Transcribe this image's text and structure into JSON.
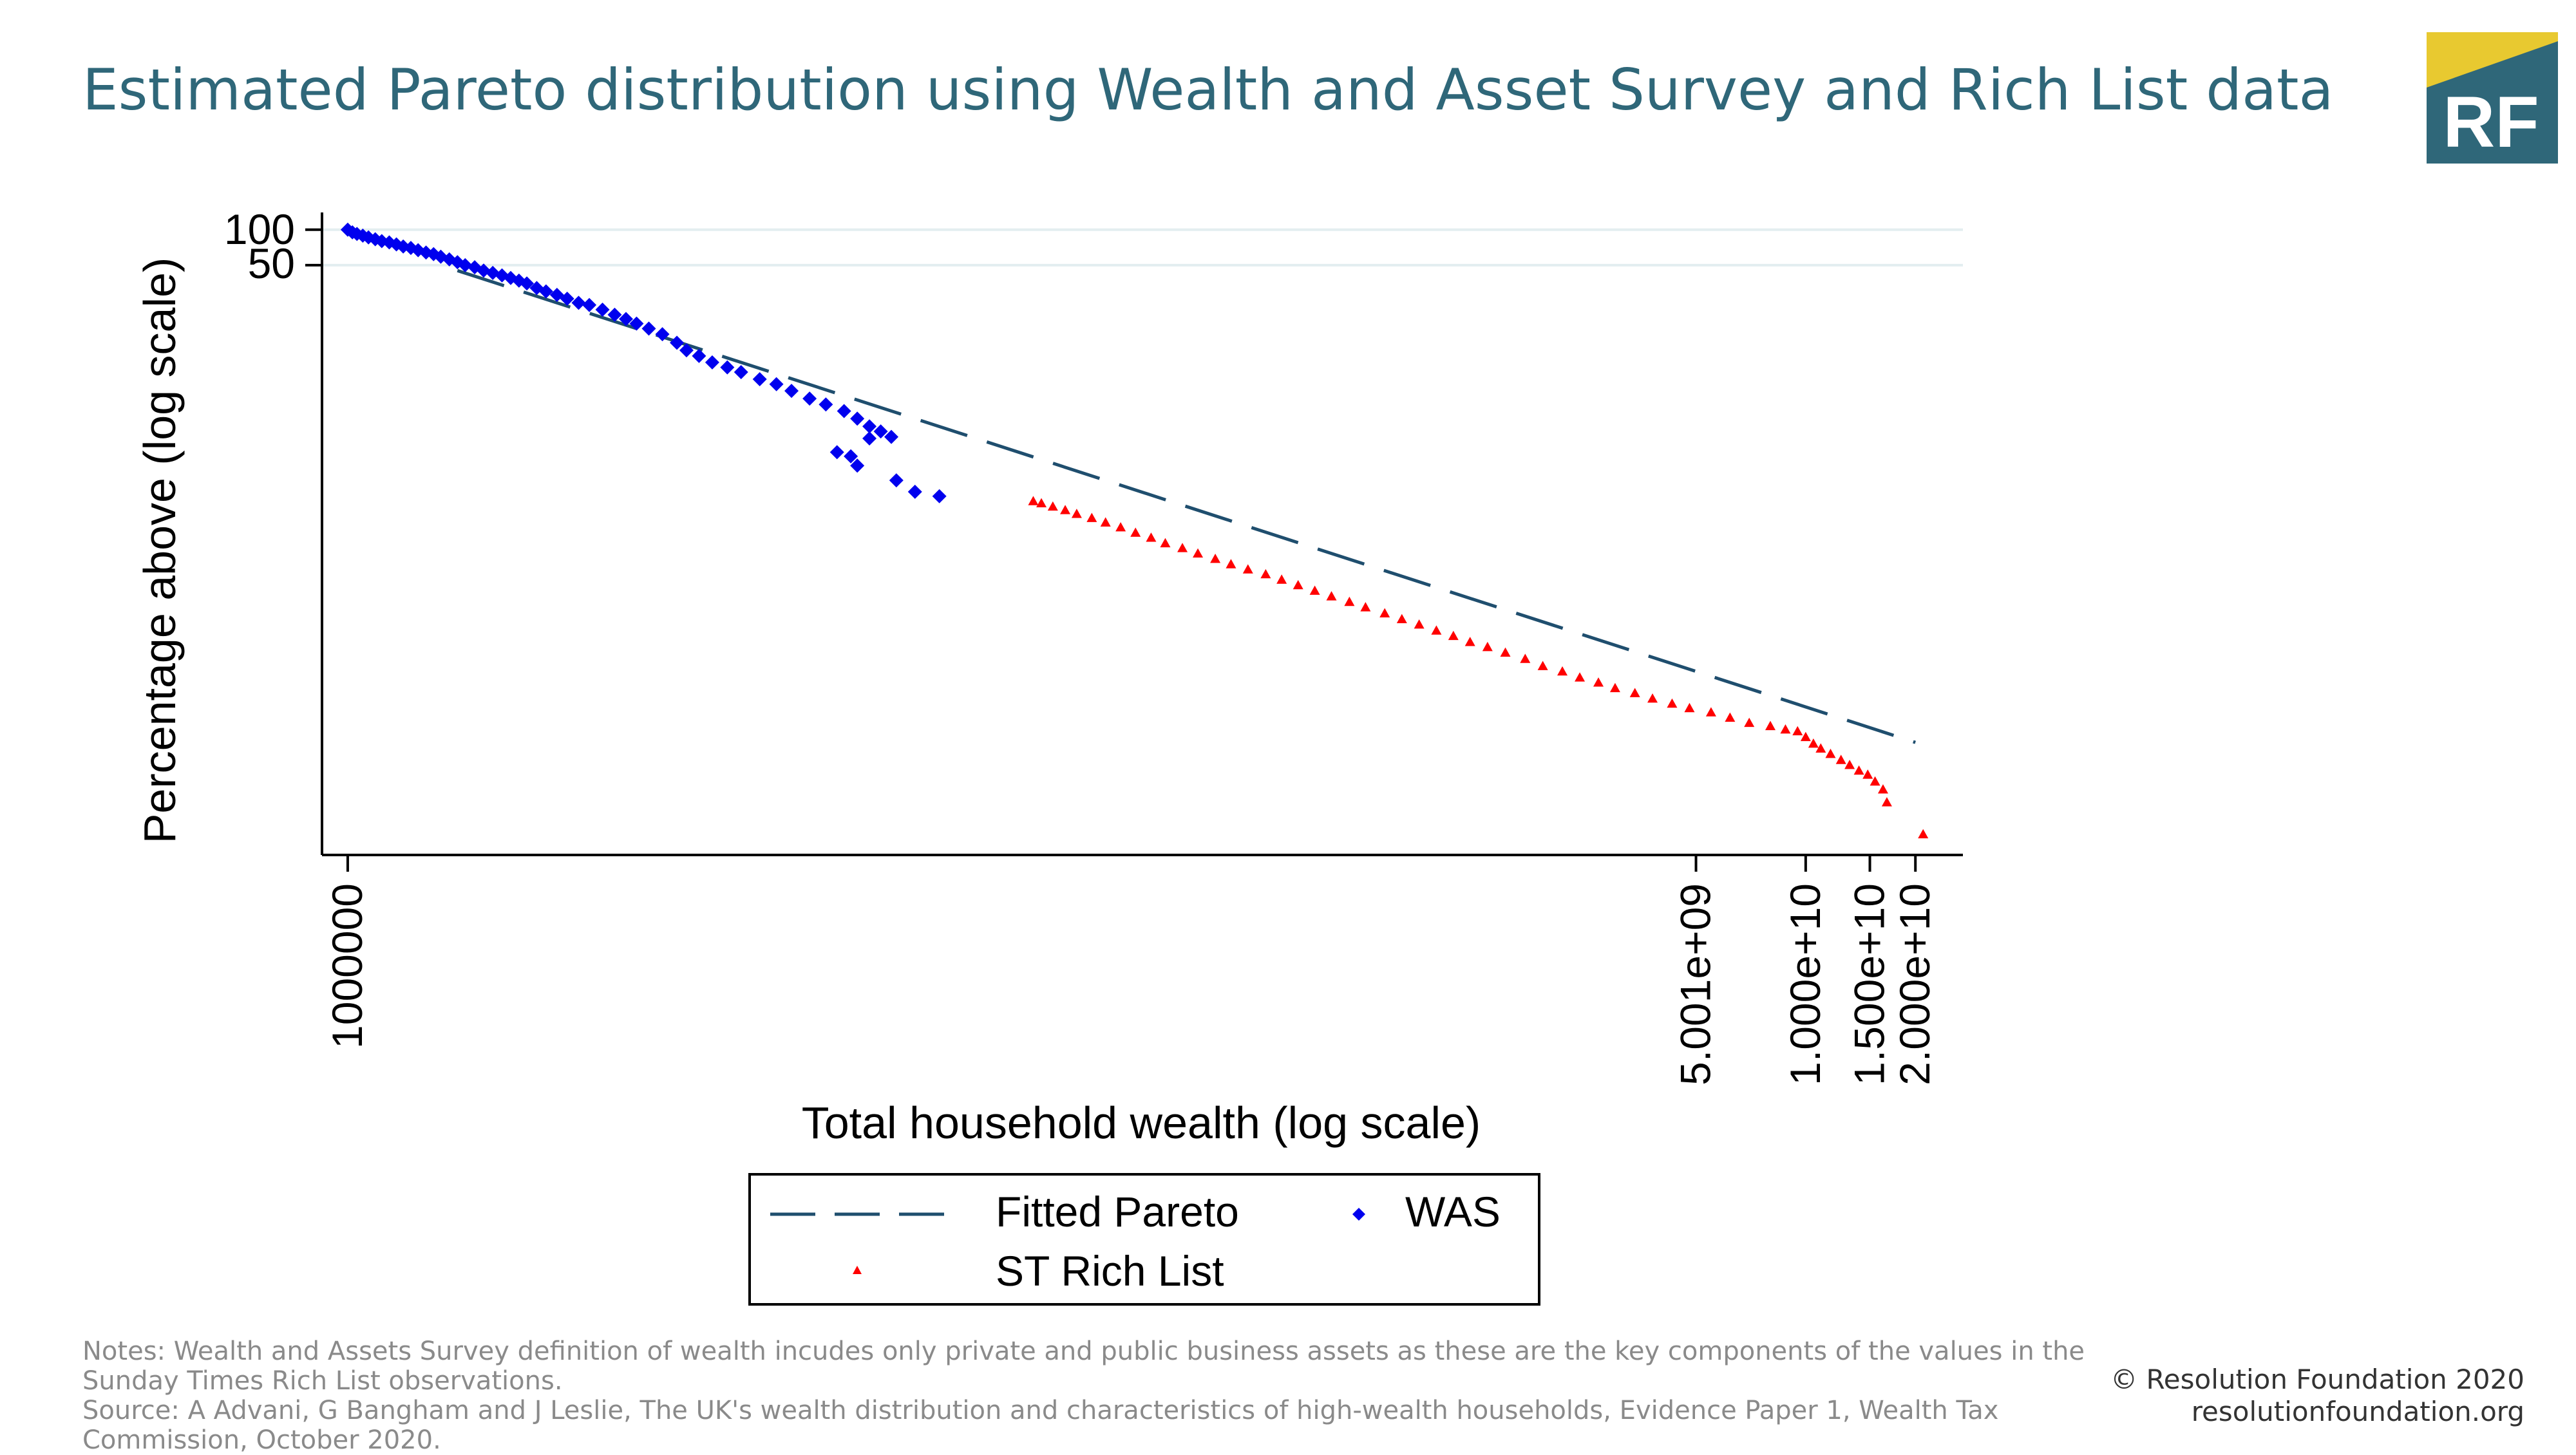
{
  "title": "Estimated Pareto distribution using Wealth and Asset Survey and Rich List data",
  "logo": {
    "text": "RF",
    "bg_color": "#2f6779",
    "accent_color": "#e8c930"
  },
  "notes": [
    "Notes: Wealth and Assets Survey definition of wealth incudes only private and public business assets as these are the key components of the values in the Sunday Times Rich List observations.",
    "Source: A Advani, G Bangham and J Leslie, The UK's wealth distribution and characteristics of high-wealth households, Evidence Paper 1, Wealth Tax Commission, October 2020."
  ],
  "footer": {
    "copyright": "© Resolution Foundation 2020",
    "website": "resolutionfoundation.org"
  },
  "legend": [
    {
      "label": "Fitted Pareto",
      "symbol": "dashed-line"
    },
    {
      "label": "WAS",
      "symbol": "diamond"
    },
    {
      "label": "ST Rich List",
      "symbol": "triangle"
    }
  ],
  "chart_data": {
    "type": "scatter",
    "xlabel": "Total household wealth (log scale)",
    "ylabel": "Percentage above (log scale)",
    "x_scale": "log",
    "y_scale": "log",
    "xlim": [
      850000,
      27000000000
    ],
    "ylim": [
      0.0005,
      140
    ],
    "x_ticks": [
      {
        "value": 1000000,
        "label": "1000000"
      },
      {
        "value": 5001000000,
        "label": "5.001e+09"
      },
      {
        "value": 10000000000,
        "label": "1.000e+10"
      },
      {
        "value": 15000000000,
        "label": "1.500e+10"
      },
      {
        "value": 20000000000,
        "label": "2.000e+10"
      }
    ],
    "y_ticks": [
      {
        "value": 100,
        "label": "100"
      },
      {
        "value": 50,
        "label": "50"
      }
    ],
    "y_grid": true,
    "legend_position": "bottom",
    "colors": {
      "fitted": "#1f4e6e",
      "was": "#0000ee",
      "rich": "#ff0000"
    },
    "series": [
      {
        "name": "Fitted Pareto",
        "style": "dashed-line",
        "points": [
          [
            2000000,
            45
          ],
          [
            20000000000,
            0.0045
          ]
        ]
      },
      {
        "name": "WAS",
        "style": "diamond",
        "points": [
          [
            1000000,
            100
          ],
          [
            1030000,
            95
          ],
          [
            1060000,
            92
          ],
          [
            1100000,
            89
          ],
          [
            1140000,
            86
          ],
          [
            1190000,
            83
          ],
          [
            1240000,
            80
          ],
          [
            1300000,
            78
          ],
          [
            1360000,
            75
          ],
          [
            1420000,
            72
          ],
          [
            1490000,
            70
          ],
          [
            1560000,
            67
          ],
          [
            1640000,
            64
          ],
          [
            1720000,
            62
          ],
          [
            1800000,
            59
          ],
          [
            1900000,
            56
          ],
          [
            2000000,
            53
          ],
          [
            2100000,
            50
          ],
          [
            2230000,
            48
          ],
          [
            2360000,
            45
          ],
          [
            2500000,
            43
          ],
          [
            2650000,
            41
          ],
          [
            2800000,
            39
          ],
          [
            2950000,
            37
          ],
          [
            3100000,
            35
          ],
          [
            3300000,
            32
          ],
          [
            3500000,
            30
          ],
          [
            3750000,
            28
          ],
          [
            4000000,
            26
          ],
          [
            4300000,
            24
          ],
          [
            4600000,
            23
          ],
          [
            5000000,
            21
          ],
          [
            5400000,
            19
          ],
          [
            5800000,
            17.5
          ],
          [
            6200000,
            16
          ],
          [
            6700000,
            14.5
          ],
          [
            7300000,
            13
          ],
          [
            8000000,
            11
          ],
          [
            8500000,
            9.5
          ],
          [
            9200000,
            8.5
          ],
          [
            10000000,
            7.5
          ],
          [
            11000000,
            6.8
          ],
          [
            12000000,
            6.2
          ],
          [
            13500000,
            5.4
          ],
          [
            15000000,
            4.9
          ],
          [
            16500000,
            4.3
          ],
          [
            18500000,
            3.7
          ],
          [
            20500000,
            3.3
          ],
          [
            23000000,
            2.9
          ],
          [
            25000000,
            2.5
          ],
          [
            27000000,
            2.15
          ],
          [
            29000000,
            1.95
          ],
          [
            31000000,
            1.75
          ],
          [
            27000000,
            1.7
          ],
          [
            24000000,
            1.2
          ],
          [
            22000000,
            1.3
          ],
          [
            25000000,
            1.0
          ],
          [
            32000000,
            0.75
          ],
          [
            36000000,
            0.6
          ],
          [
            42000000,
            0.55
          ]
        ]
      },
      {
        "name": "ST Rich List",
        "style": "triangle",
        "points": [
          [
            76000000,
            0.5
          ],
          [
            80000000,
            0.48
          ],
          [
            86000000,
            0.45
          ],
          [
            93000000,
            0.42
          ],
          [
            100000000,
            0.39
          ],
          [
            110000000,
            0.36
          ],
          [
            120000000,
            0.33
          ],
          [
            132000000,
            0.3
          ],
          [
            145000000,
            0.27
          ],
          [
            160000000,
            0.245
          ],
          [
            175000000,
            0.22
          ],
          [
            195000000,
            0.2
          ],
          [
            215000000,
            0.18
          ],
          [
            240000000,
            0.162
          ],
          [
            265000000,
            0.146
          ],
          [
            295000000,
            0.132
          ],
          [
            330000000,
            0.12
          ],
          [
            365000000,
            0.108
          ],
          [
            405000000,
            0.097
          ],
          [
            450000000,
            0.087
          ],
          [
            500000000,
            0.078
          ],
          [
            560000000,
            0.07
          ],
          [
            620000000,
            0.063
          ],
          [
            700000000,
            0.056
          ],
          [
            780000000,
            0.05
          ],
          [
            870000000,
            0.045
          ],
          [
            970000000,
            0.04
          ],
          [
            1080000000,
            0.036
          ],
          [
            1200000000,
            0.032
          ],
          [
            1340000000,
            0.029
          ],
          [
            1500000000,
            0.026
          ],
          [
            1700000000,
            0.023
          ],
          [
            1900000000,
            0.02
          ],
          [
            2150000000,
            0.018
          ],
          [
            2400000000,
            0.016
          ],
          [
            2700000000,
            0.0145
          ],
          [
            3000000000,
            0.013
          ],
          [
            3400000000,
            0.0118
          ],
          [
            3800000000,
            0.0106
          ],
          [
            4300000000,
            0.0096
          ],
          [
            4800000000,
            0.0088
          ],
          [
            5500000000,
            0.0081
          ],
          [
            6200000000,
            0.0073
          ],
          [
            7000000000,
            0.0066
          ],
          [
            8000000000,
            0.0062
          ],
          [
            8800000000,
            0.0058
          ],
          [
            9500000000,
            0.0056
          ],
          [
            10000000000,
            0.005
          ],
          [
            10500000000,
            0.0044
          ],
          [
            11000000000,
            0.004
          ],
          [
            11700000000,
            0.0036
          ],
          [
            12500000000,
            0.0032
          ],
          [
            13200000000,
            0.0029
          ],
          [
            14000000000,
            0.0026
          ],
          [
            14800000000,
            0.0024
          ],
          [
            15500000000,
            0.0021
          ],
          [
            16300000000,
            0.0018
          ],
          [
            16700000000,
            0.0014
          ],
          [
            21000000000,
            0.00075
          ]
        ]
      }
    ]
  }
}
